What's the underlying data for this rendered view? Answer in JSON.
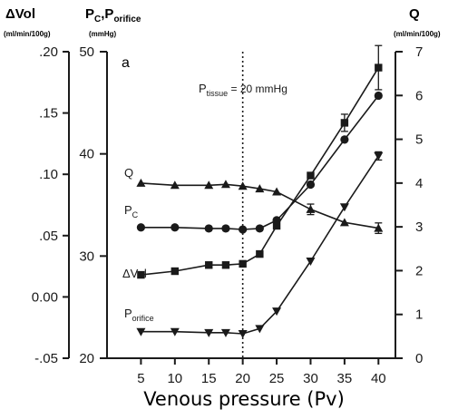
{
  "chart_data": {
    "type": "line",
    "panel_label": "a",
    "x": [
      5,
      10,
      15,
      17.5,
      20,
      22.5,
      25,
      30,
      35,
      40
    ],
    "xlabel": "Venous pressure (Pv)",
    "xticks": [
      "5",
      "10",
      "15",
      "20",
      "25",
      "30",
      "35",
      "40"
    ],
    "xlim": [
      0,
      42.5
    ],
    "axes": {
      "dvol": {
        "title": "ΔVol",
        "unit": "(ml/min/100g)",
        "ticks": [
          ".20",
          ".15",
          ".10",
          ".05",
          "0.00",
          "-.05"
        ],
        "ylim": [
          -0.05,
          0.2
        ]
      },
      "pc": {
        "title_main": "P",
        "title_sub1": "C",
        "title_sep": ",P",
        "title_sub2": "orifice",
        "unit": "(mmHg)",
        "ticks": [
          "50",
          "40",
          "30",
          "20"
        ],
        "ylim": [
          20,
          50
        ]
      },
      "q": {
        "title": "Q",
        "unit": "(ml/min/100g)",
        "ticks": [
          "7",
          "6",
          "5",
          "4",
          "3",
          "2",
          "1",
          "0"
        ],
        "ylim": [
          0,
          7
        ]
      }
    },
    "annotation": {
      "main": "P",
      "sub": "tissue",
      "rest": " = 20 mmHg",
      "x_line": 20,
      "style": "dotted"
    },
    "series": [
      {
        "name": "Q",
        "axis": "q",
        "marker": "triangle-up",
        "x": [
          5,
          10,
          15,
          17.5,
          20,
          22.5,
          25,
          30,
          35,
          40
        ],
        "values": [
          4.0,
          3.95,
          3.95,
          3.97,
          3.93,
          3.87,
          3.8,
          3.4,
          3.1,
          2.97
        ],
        "error_bars": [
          null,
          null,
          null,
          null,
          null,
          null,
          null,
          0.12,
          null,
          0.12
        ]
      },
      {
        "name_main": "P",
        "name_sub": "C",
        "axis": "pc",
        "marker": "circle",
        "x": [
          5,
          10,
          15,
          17.5,
          20,
          22.5,
          25,
          30,
          35,
          40
        ],
        "values": [
          32.8,
          32.8,
          32.7,
          32.7,
          32.6,
          32.7,
          33.5,
          37.0,
          41.4,
          45.7
        ],
        "error_bars": [
          null,
          null,
          null,
          null,
          null,
          null,
          null,
          null,
          null,
          null
        ]
      },
      {
        "name": "ΔVol",
        "axis": "dvol",
        "marker": "square",
        "x": [
          5,
          10,
          15,
          17.5,
          20,
          22.5,
          25,
          30,
          35,
          40
        ],
        "values": [
          0.018,
          0.021,
          0.026,
          0.026,
          0.027,
          0.035,
          0.058,
          0.099,
          0.142,
          0.187
        ],
        "error_bars": [
          null,
          null,
          null,
          null,
          null,
          null,
          null,
          null,
          0.007,
          0.018
        ]
      },
      {
        "name_main": "P",
        "name_sub": "orifice",
        "axis": "pc",
        "marker": "triangle-down",
        "x": [
          5,
          10,
          15,
          17.5,
          20,
          22.5,
          25,
          30,
          35,
          40
        ],
        "values": [
          22.6,
          22.6,
          22.5,
          22.5,
          22.4,
          22.9,
          24.6,
          29.5,
          34.8,
          39.8
        ],
        "error_bars": [
          null,
          null,
          null,
          null,
          null,
          null,
          null,
          null,
          null,
          0.4
        ]
      }
    ]
  }
}
